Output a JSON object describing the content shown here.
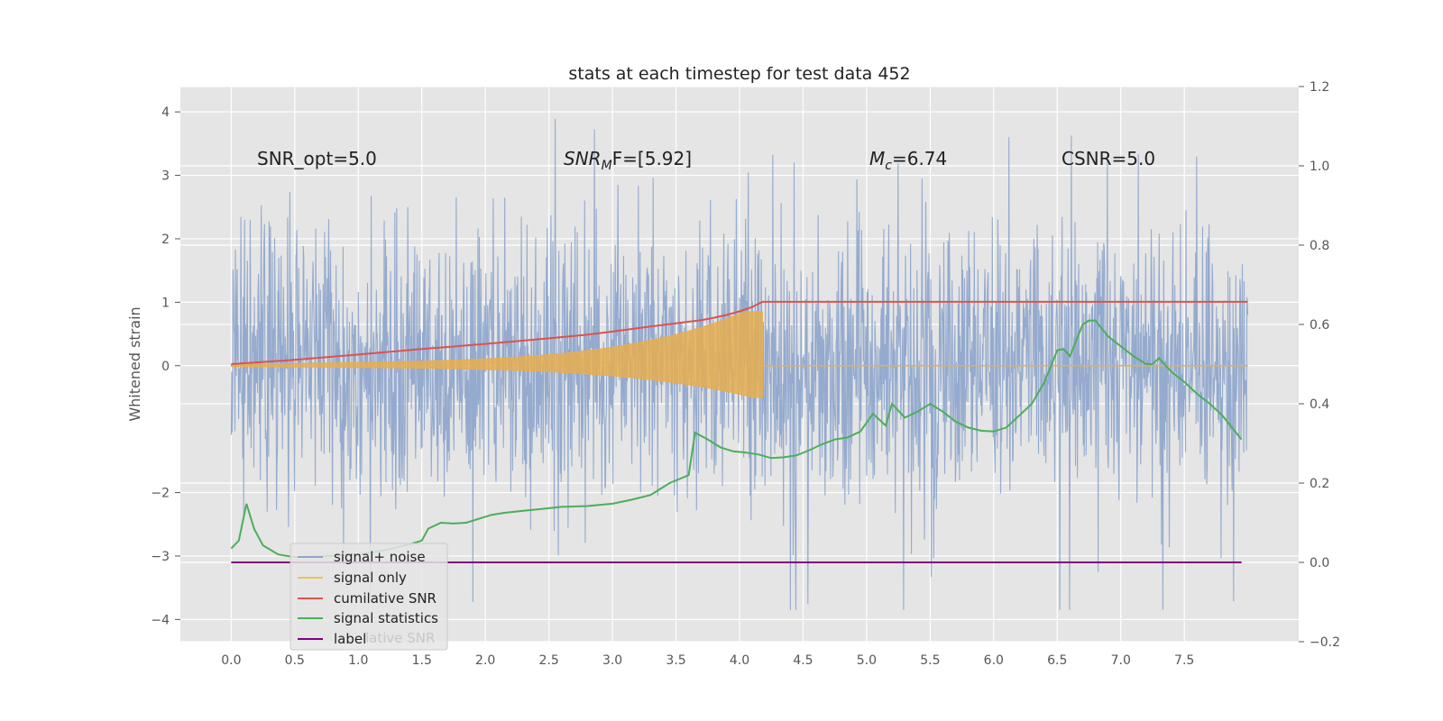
{
  "chart_data": {
    "type": "line",
    "title": "stats at each timestep for test data 452",
    "ylabel": "Whitened strain",
    "xlabel": "",
    "xlim": [
      -0.4,
      8.4
    ],
    "ylim": [
      -4.35,
      4.4
    ],
    "y2lim": [
      -0.2,
      1.2
    ],
    "xticks": [
      "0.0",
      "0.5",
      "1.0",
      "1.5",
      "2.0",
      "2.5",
      "3.0",
      "3.5",
      "4.0",
      "4.5",
      "5.0",
      "5.5",
      "6.0",
      "6.5",
      "7.0",
      "7.5"
    ],
    "yticks": [
      "4",
      "3",
      "2",
      "1",
      "0",
      "−2",
      "−3",
      "−4"
    ],
    "y2ticks": [
      "1.2",
      "1.0",
      "0.8",
      "0.6",
      "0.4",
      "0.2",
      "0.0",
      "−0.2"
    ],
    "annotations": {
      "snr_opt": "SNR_opt=5.0",
      "snr_mf_main": "SNR",
      "snr_mf_sub": "M",
      "snr_mf_rest": "F=[5.92]",
      "mc_main": "M",
      "mc_sub": "c",
      "mc_rest": "=6.74",
      "csnr": "CSNR=5.0"
    },
    "grid": true,
    "legend_position": "lower-left",
    "legend": [
      "signal+ noise",
      "signal only",
      "cumilative SNR",
      "signal statistics",
      "label"
    ],
    "legend_ghost_text": "lative SNR",
    "colors": {
      "background": "#e5e5e5",
      "grid": "#ffffff",
      "noise": "#8fa7cc",
      "signal": "#e6ae50",
      "cumulative": "#d9534f",
      "statistics": "#4cae5a",
      "label": "#800080"
    },
    "series": [
      {
        "name": "signal+ noise",
        "axis": "left",
        "description_values": {
          "x_range": [
            0.0,
            8.0
          ],
          "envelope_upper": 2.5,
          "envelope_lower": -2.5,
          "peak_max": 4.02,
          "peak_min": -3.85
        }
      },
      {
        "name": "signal only",
        "axis": "left",
        "chirp": {
          "x_start": 0.0,
          "x_merger": 4.18,
          "amp_start": 0.02,
          "amp_merger": 0.85,
          "amp_after": 0.0
        }
      },
      {
        "name": "cumilative SNR",
        "axis": "right",
        "x": [
          0.0,
          0.5,
          1.0,
          1.5,
          2.0,
          2.5,
          2.8,
          3.0,
          3.3,
          3.5,
          3.7,
          3.8,
          3.9,
          4.0,
          4.1,
          4.18,
          8.0
        ],
        "y": [
          0.5,
          0.511,
          0.524,
          0.538,
          0.551,
          0.565,
          0.574,
          0.582,
          0.595,
          0.603,
          0.611,
          0.617,
          0.624,
          0.633,
          0.644,
          0.657,
          0.657
        ]
      },
      {
        "name": "signal statistics",
        "axis": "right",
        "x": [
          0.0,
          0.06,
          0.12,
          0.18,
          0.25,
          0.37,
          0.5,
          0.7,
          1.0,
          1.2,
          1.4,
          1.5,
          1.55,
          1.65,
          1.75,
          1.85,
          1.95,
          2.05,
          2.15,
          2.3,
          2.45,
          2.6,
          2.8,
          3.0,
          3.15,
          3.3,
          3.45,
          3.6,
          3.65,
          3.75,
          3.85,
          3.95,
          4.05,
          4.15,
          4.25,
          4.35,
          4.45,
          4.55,
          4.65,
          4.75,
          4.85,
          4.95,
          5.05,
          5.15,
          5.2,
          5.3,
          5.4,
          5.5,
          5.6,
          5.7,
          5.8,
          5.9,
          6.0,
          6.1,
          6.2,
          6.3,
          6.4,
          6.5,
          6.55,
          6.6,
          6.7,
          6.75,
          6.8,
          6.9,
          7.0,
          7.1,
          7.2,
          7.25,
          7.3,
          7.4,
          7.5,
          7.6,
          7.7,
          7.8,
          7.9,
          7.95
        ],
        "y": [
          0.035,
          0.055,
          0.148,
          0.085,
          0.043,
          0.02,
          0.013,
          0.015,
          0.02,
          0.03,
          0.045,
          0.055,
          0.085,
          0.1,
          0.098,
          0.1,
          0.11,
          0.12,
          0.125,
          0.13,
          0.135,
          0.14,
          0.142,
          0.148,
          0.158,
          0.17,
          0.2,
          0.22,
          0.327,
          0.31,
          0.29,
          0.28,
          0.277,
          0.272,
          0.263,
          0.265,
          0.27,
          0.283,
          0.298,
          0.31,
          0.315,
          0.33,
          0.375,
          0.345,
          0.4,
          0.365,
          0.38,
          0.4,
          0.38,
          0.355,
          0.34,
          0.332,
          0.33,
          0.34,
          0.37,
          0.4,
          0.455,
          0.535,
          0.538,
          0.52,
          0.6,
          0.61,
          0.61,
          0.57,
          0.545,
          0.52,
          0.5,
          0.5,
          0.515,
          0.48,
          0.455,
          0.425,
          0.4,
          0.37,
          0.33,
          0.31
        ]
      },
      {
        "name": "label",
        "axis": "right",
        "x": [
          0.0,
          7.95
        ],
        "y": [
          0.0,
          0.0
        ]
      }
    ]
  }
}
